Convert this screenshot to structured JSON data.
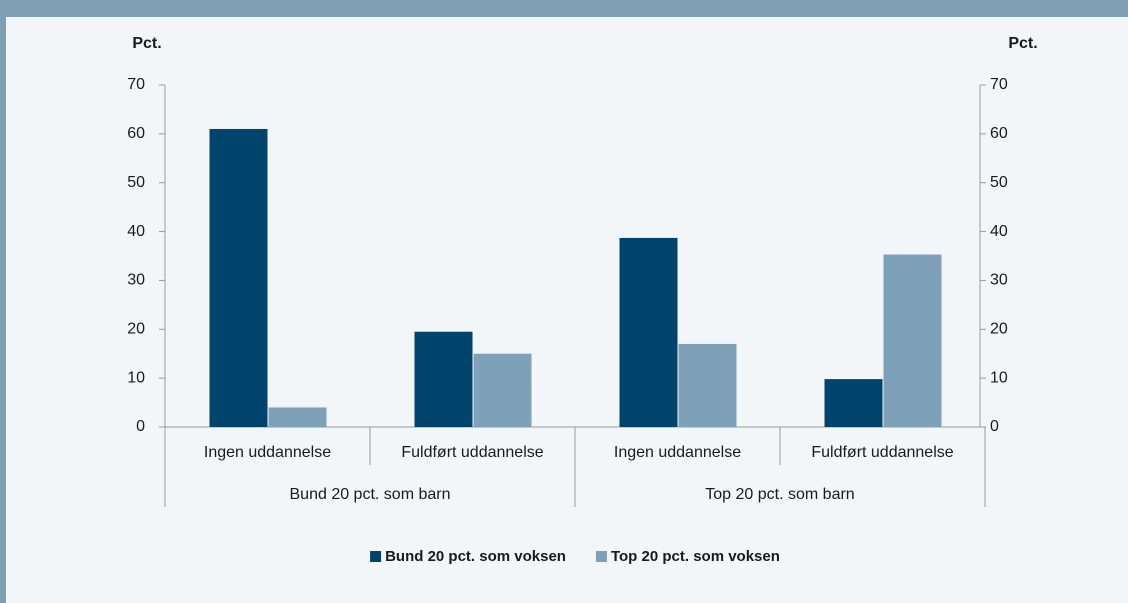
{
  "chart_data": {
    "type": "bar",
    "y_axis_label": "Pct.",
    "y2_axis_label": "Pct.",
    "categories": [
      "Ingen uddannelse",
      "Fuldført uddannelse",
      "Ingen uddannelse",
      "Fuldført uddannelse"
    ],
    "category_groups": [
      "Bund 20 pct. som barn",
      "Top 20 pct. som barn"
    ],
    "series": [
      {
        "name": "Bund 20 pct. som voksen",
        "color": "#00436b",
        "values": [
          61,
          19.5,
          38.7,
          9.8
        ]
      },
      {
        "name": "Top 20 pct. som voksen",
        "color": "#7fa1b8",
        "values": [
          4,
          15,
          17,
          35.3
        ]
      }
    ],
    "ylim": [
      0,
      70
    ],
    "yticks": [
      0,
      10,
      20,
      30,
      40,
      50,
      60,
      70
    ],
    "y2lim": [
      0,
      70
    ],
    "y2ticks": [
      0,
      10,
      20,
      30,
      40,
      50,
      60,
      70
    ],
    "grid": false,
    "legend": "bottom"
  }
}
